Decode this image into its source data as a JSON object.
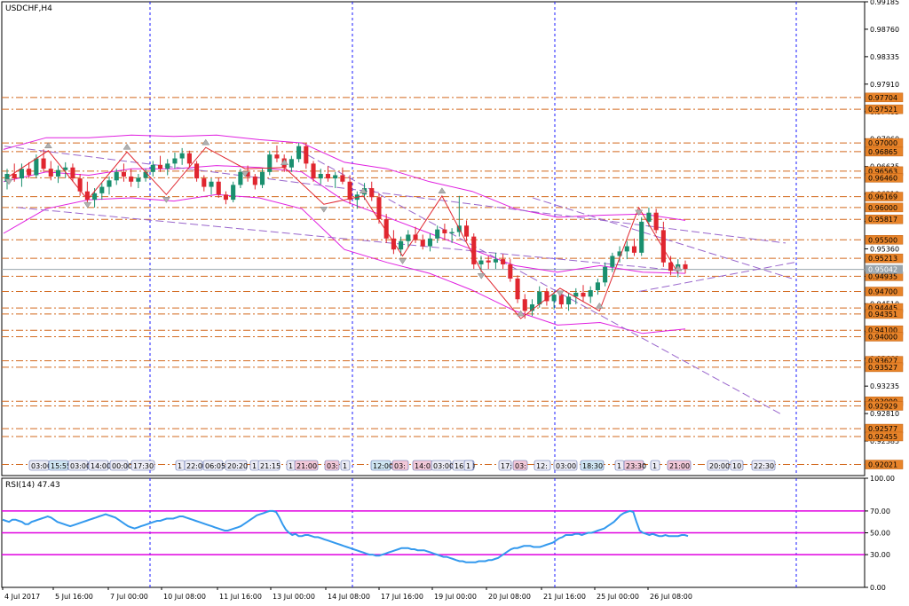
{
  "chart_data": [
    {
      "type": "candlestick",
      "title": "USDCHF,H4",
      "ylim": [
        0.9185,
        0.99185
      ],
      "y_ticks": [
        0.99185,
        0.9876,
        0.98335,
        0.9791,
        0.97485,
        0.9706,
        0.96635,
        0.9621,
        0.95785,
        0.9536,
        0.94935,
        0.9451,
        0.94085,
        0.9366,
        0.93235,
        0.9281,
        0.92385
      ],
      "current_price": 0.95042,
      "x_ticks": [
        "4 Jul 2017",
        "5 Jul 16:00",
        "7 Jul 00:00",
        "10 Jul 08:00",
        "11 Jul 16:00",
        "13 Jul 00:00",
        "14 Jul 08:00",
        "17 Jul 16:00",
        "19 Jul 00:00",
        "20 Jul 08:00",
        "21 Jul 16:00",
        "25 Jul 00:00",
        "26 Jul 08:00"
      ],
      "levels": [
        0.97704,
        0.97521,
        0.97,
        0.96865,
        0.96563,
        0.9646,
        0.96169,
        0.96,
        0.95817,
        0.955,
        0.95213,
        0.94935,
        0.947,
        0.94445,
        0.94351,
        0.941,
        0.94,
        0.93627,
        0.93527,
        0.93,
        0.92929,
        0.92577,
        0.92455,
        0.92021
      ],
      "event_tags": [
        "03:00",
        "15:55",
        "03:00",
        "14:00",
        "00:00",
        "17:30",
        "1",
        "22:00",
        "06:05",
        "20:20",
        "1",
        "21:15",
        "1",
        "21:00",
        "03:",
        "1",
        "12:00",
        "03:",
        "14:02",
        "03:00",
        "16:00",
        "1",
        "17:",
        "03:",
        "12:",
        "03:00",
        "18:30",
        "1",
        "23:30",
        "1",
        "21:00",
        "20:00",
        "10",
        "22:30"
      ],
      "candles": [
        [
          0.964,
          0.966,
          0.9628,
          0.9652
        ],
        [
          0.9652,
          0.9668,
          0.964,
          0.9645
        ],
        [
          0.9645,
          0.9668,
          0.9632,
          0.966
        ],
        [
          0.966,
          0.967,
          0.9645,
          0.965
        ],
        [
          0.965,
          0.9682,
          0.9646,
          0.9676
        ],
        [
          0.9676,
          0.969,
          0.9655,
          0.966
        ],
        [
          0.966,
          0.9672,
          0.9642,
          0.9648
        ],
        [
          0.9648,
          0.9665,
          0.9638,
          0.9658
        ],
        [
          0.9658,
          0.967,
          0.9646,
          0.9662
        ],
        [
          0.9662,
          0.9668,
          0.964,
          0.9645
        ],
        [
          0.9645,
          0.9652,
          0.9618,
          0.9625
        ],
        [
          0.9625,
          0.964,
          0.9608,
          0.9612
        ],
        [
          0.9612,
          0.963,
          0.96,
          0.9622
        ],
        [
          0.9622,
          0.9638,
          0.9612,
          0.9632
        ],
        [
          0.9632,
          0.9648,
          0.962,
          0.9642
        ],
        [
          0.9642,
          0.966,
          0.9635,
          0.9655
        ],
        [
          0.9655,
          0.9668,
          0.964,
          0.9648
        ],
        [
          0.9648,
          0.966,
          0.9632,
          0.964
        ],
        [
          0.964,
          0.9652,
          0.963,
          0.9646
        ],
        [
          0.9646,
          0.966,
          0.964,
          0.9655
        ],
        [
          0.9655,
          0.9672,
          0.9648,
          0.9666
        ],
        [
          0.9666,
          0.968,
          0.9655,
          0.966
        ],
        [
          0.966,
          0.9675,
          0.965,
          0.9668
        ],
        [
          0.9668,
          0.9685,
          0.966,
          0.9676
        ],
        [
          0.9676,
          0.9692,
          0.9666,
          0.9684
        ],
        [
          0.9684,
          0.9688,
          0.9662,
          0.9668
        ],
        [
          0.9668,
          0.9672,
          0.964,
          0.9645
        ],
        [
          0.9645,
          0.965,
          0.9625,
          0.9632
        ],
        [
          0.9632,
          0.9645,
          0.962,
          0.964
        ],
        [
          0.964,
          0.9646,
          0.9615,
          0.962
        ],
        [
          0.962,
          0.9625,
          0.9605,
          0.9612
        ],
        [
          0.9612,
          0.964,
          0.9608,
          0.9635
        ],
        [
          0.9635,
          0.966,
          0.963,
          0.9655
        ],
        [
          0.9655,
          0.9665,
          0.964,
          0.9648
        ],
        [
          0.9648,
          0.9652,
          0.9628,
          0.9635
        ],
        [
          0.9635,
          0.966,
          0.963,
          0.9655
        ],
        [
          0.9655,
          0.9688,
          0.965,
          0.9682
        ],
        [
          0.9682,
          0.9696,
          0.967,
          0.9676
        ],
        [
          0.9676,
          0.9682,
          0.9655,
          0.9662
        ],
        [
          0.9662,
          0.968,
          0.9655,
          0.9675
        ],
        [
          0.9675,
          0.97,
          0.967,
          0.9695
        ],
        [
          0.9695,
          0.97,
          0.966,
          0.9668
        ],
        [
          0.9668,
          0.9672,
          0.964,
          0.9645
        ],
        [
          0.9645,
          0.966,
          0.9636,
          0.9652
        ],
        [
          0.9652,
          0.9664,
          0.964,
          0.9645
        ],
        [
          0.9645,
          0.9655,
          0.963,
          0.965
        ],
        [
          0.965,
          0.9662,
          0.9636,
          0.964
        ],
        [
          0.964,
          0.965,
          0.9605,
          0.9612
        ],
        [
          0.9612,
          0.9625,
          0.9598,
          0.962
        ],
        [
          0.962,
          0.9638,
          0.9612,
          0.963
        ],
        [
          0.963,
          0.964,
          0.961,
          0.9616
        ],
        [
          0.9616,
          0.9622,
          0.9575,
          0.9582
        ],
        [
          0.9582,
          0.959,
          0.9545,
          0.9552
        ],
        [
          0.9552,
          0.9565,
          0.9528,
          0.9535
        ],
        [
          0.9535,
          0.9555,
          0.9525,
          0.9548
        ],
        [
          0.9548,
          0.9565,
          0.9538,
          0.9558
        ],
        [
          0.9558,
          0.957,
          0.9545,
          0.955
        ],
        [
          0.955,
          0.9558,
          0.9535,
          0.954
        ],
        [
          0.954,
          0.956,
          0.9532,
          0.9552
        ],
        [
          0.9552,
          0.9572,
          0.9545,
          0.9566
        ],
        [
          0.9566,
          0.9575,
          0.955,
          0.956
        ],
        [
          0.956,
          0.9568,
          0.9545,
          0.9562
        ],
        [
          0.9562,
          0.9618,
          0.9555,
          0.9572
        ],
        [
          0.9572,
          0.958,
          0.9548,
          0.9555
        ],
        [
          0.9555,
          0.956,
          0.9505,
          0.9512
        ],
        [
          0.9512,
          0.9525,
          0.95,
          0.9518
        ],
        [
          0.9518,
          0.9525,
          0.9505,
          0.9515
        ],
        [
          0.9515,
          0.953,
          0.9505,
          0.952
        ],
        [
          0.952,
          0.9528,
          0.9505,
          0.9512
        ],
        [
          0.9512,
          0.952,
          0.9485,
          0.949
        ],
        [
          0.949,
          0.9495,
          0.9452,
          0.9458
        ],
        [
          0.9458,
          0.9466,
          0.9428,
          0.944
        ],
        [
          0.944,
          0.9458,
          0.9432,
          0.945
        ],
        [
          0.945,
          0.9478,
          0.9445,
          0.947
        ],
        [
          0.947,
          0.9475,
          0.9448,
          0.9455
        ],
        [
          0.9455,
          0.947,
          0.9442,
          0.9465
        ],
        [
          0.9465,
          0.947,
          0.9445,
          0.945
        ],
        [
          0.945,
          0.9468,
          0.944,
          0.9462
        ],
        [
          0.9462,
          0.9475,
          0.945,
          0.9468
        ],
        [
          0.9468,
          0.948,
          0.9455,
          0.9462
        ],
        [
          0.9462,
          0.9478,
          0.9452,
          0.9472
        ],
        [
          0.9472,
          0.949,
          0.9465,
          0.9484
        ],
        [
          0.9484,
          0.9515,
          0.9478,
          0.9508
        ],
        [
          0.9508,
          0.953,
          0.95,
          0.9525
        ],
        [
          0.9525,
          0.954,
          0.9515,
          0.9532
        ],
        [
          0.9532,
          0.9548,
          0.952,
          0.954
        ],
        [
          0.954,
          0.9552,
          0.9525,
          0.953
        ],
        [
          0.953,
          0.9585,
          0.9525,
          0.9578
        ],
        [
          0.9578,
          0.96,
          0.957,
          0.9592
        ],
        [
          0.9592,
          0.9598,
          0.956,
          0.9565
        ],
        [
          0.9565,
          0.9578,
          0.9508,
          0.9515
        ],
        [
          0.9515,
          0.9525,
          0.9495,
          0.9502
        ],
        [
          0.9502,
          0.952,
          0.9492,
          0.9512
        ],
        [
          0.9512,
          0.9518,
          0.9498,
          0.9505
        ]
      ],
      "bollinger_bands": {
        "upper": [
          0.969,
          0.9708,
          0.9708,
          0.9712,
          0.971,
          0.9712,
          0.9705,
          0.97,
          0.967,
          0.966,
          0.964,
          0.9625,
          0.9598,
          0.9585,
          0.9588,
          0.959,
          0.958
        ],
        "middle": [
          0.964,
          0.9655,
          0.965,
          0.966,
          0.966,
          0.9665,
          0.9662,
          0.9655,
          0.961,
          0.9585,
          0.956,
          0.9535,
          0.951,
          0.95,
          0.951,
          0.95,
          0.9498
        ],
        "lower": [
          0.956,
          0.9598,
          0.9612,
          0.9615,
          0.961,
          0.962,
          0.9615,
          0.9598,
          0.9535,
          0.9515,
          0.9498,
          0.9472,
          0.944,
          0.9418,
          0.9422,
          0.9405,
          0.9412
        ]
      },
      "zigzag": [
        0.9648,
        0.9688,
        0.9612,
        0.9686,
        0.962,
        0.9693,
        0.966,
        0.9662,
        0.9605,
        0.9618,
        0.9525,
        0.9618,
        0.9502,
        0.9428,
        0.9475,
        0.944,
        0.96,
        0.9498
      ],
      "trendlines": [
        [
          0.9695,
          0.9545
        ],
        [
          0.96,
          0.9503
        ],
        [
          0.969,
          0.928
        ],
        [
          0.947,
          0.9515
        ],
        [
          0.9615,
          0.949
        ]
      ]
    },
    {
      "type": "line",
      "title": "RSI(14) 47.43",
      "ylim": [
        0,
        100
      ],
      "y_ticks": [
        100.0,
        70.0,
        50.0,
        30.0,
        0.0
      ],
      "levels": [
        70,
        50,
        30
      ],
      "series": [
        {
          "values": [
            62,
            61,
            60,
            62,
            62,
            61,
            60,
            58,
            58,
            60,
            61,
            62,
            63,
            64,
            65,
            64,
            62,
            60,
            59,
            58,
            57,
            56,
            57,
            58,
            59,
            60,
            61,
            62,
            63,
            64,
            65,
            66,
            67,
            66,
            65,
            64,
            62,
            60,
            58,
            56,
            55,
            54,
            55,
            56,
            57,
            58,
            59,
            60,
            61,
            61,
            62,
            63,
            63,
            63,
            64,
            65,
            65,
            64,
            63,
            62,
            61,
            60,
            59,
            58,
            57,
            56,
            55,
            54,
            53,
            52,
            52,
            53,
            54,
            55,
            56,
            58,
            60,
            62,
            64,
            66,
            67,
            68,
            69,
            70,
            70,
            69,
            64,
            58,
            53,
            50,
            48,
            49,
            47,
            47,
            48,
            48,
            47,
            46,
            46,
            45,
            44,
            43,
            42,
            41,
            40,
            39,
            38,
            37,
            36,
            35,
            34,
            33,
            32,
            31,
            30,
            30,
            29,
            29,
            30,
            31,
            32,
            33,
            34,
            35,
            36,
            36,
            36,
            35,
            35,
            34,
            34,
            34,
            33,
            32,
            31,
            30,
            29,
            28,
            28,
            27,
            26,
            25,
            24,
            24,
            23,
            23,
            23,
            23,
            24,
            24,
            24,
            25,
            25,
            26,
            27,
            29,
            31,
            33,
            35,
            36,
            36,
            37,
            38,
            38,
            38,
            37,
            37,
            37,
            38,
            39,
            40,
            41,
            43,
            45,
            46,
            48,
            48,
            48,
            49,
            49,
            48,
            49,
            50,
            50,
            51,
            52,
            53,
            54,
            56,
            58,
            60,
            63,
            66,
            68,
            69,
            70,
            69,
            60,
            52,
            50,
            49,
            48,
            49,
            48,
            47,
            47,
            48,
            47,
            47,
            47,
            47,
            48,
            48,
            47
          ]
        }
      ]
    }
  ]
}
